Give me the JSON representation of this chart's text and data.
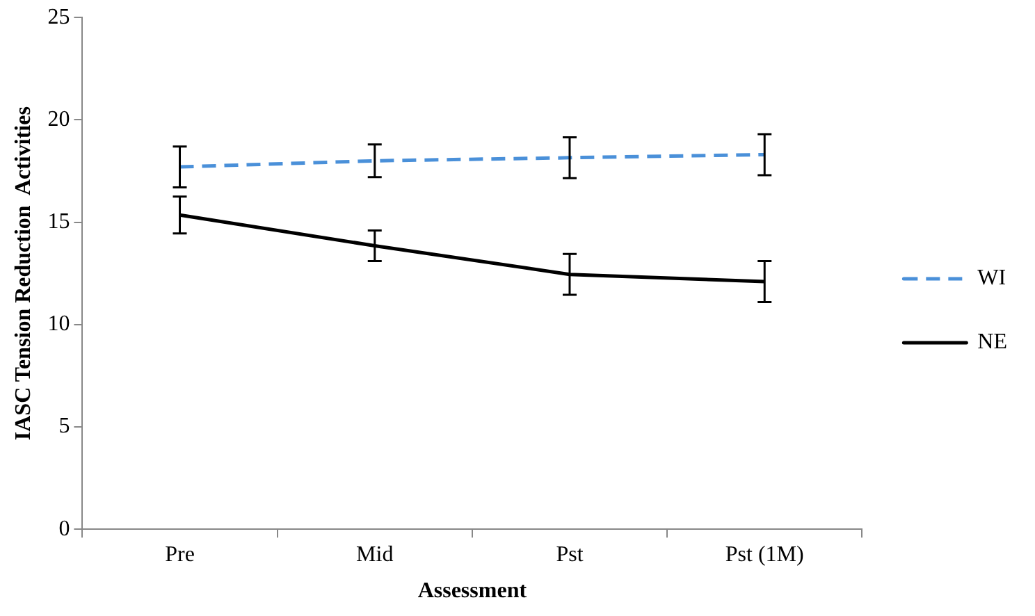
{
  "chart_data": {
    "type": "line",
    "xlabel": "Assessment",
    "ylabel": "IASC Tension Reduction  Activities",
    "categories": [
      "Pre",
      "Mid",
      "Pst",
      "Pst (1M)"
    ],
    "series": [
      {
        "name": "WI",
        "color": "#4a90d9",
        "line_style": "dashed",
        "values": [
          17.7,
          18.0,
          18.15,
          18.3
        ],
        "errors": [
          1.0,
          0.8,
          1.0,
          1.0
        ]
      },
      {
        "name": "NE",
        "color": "#000000",
        "line_style": "solid",
        "values": [
          15.35,
          13.85,
          12.45,
          12.1
        ],
        "errors": [
          0.9,
          0.75,
          1.0,
          1.0
        ]
      }
    ],
    "ylim": [
      0,
      25
    ],
    "yticks": [
      0,
      5,
      10,
      15,
      20,
      25
    ],
    "grid": false,
    "legend": "right",
    "marker": "none"
  }
}
